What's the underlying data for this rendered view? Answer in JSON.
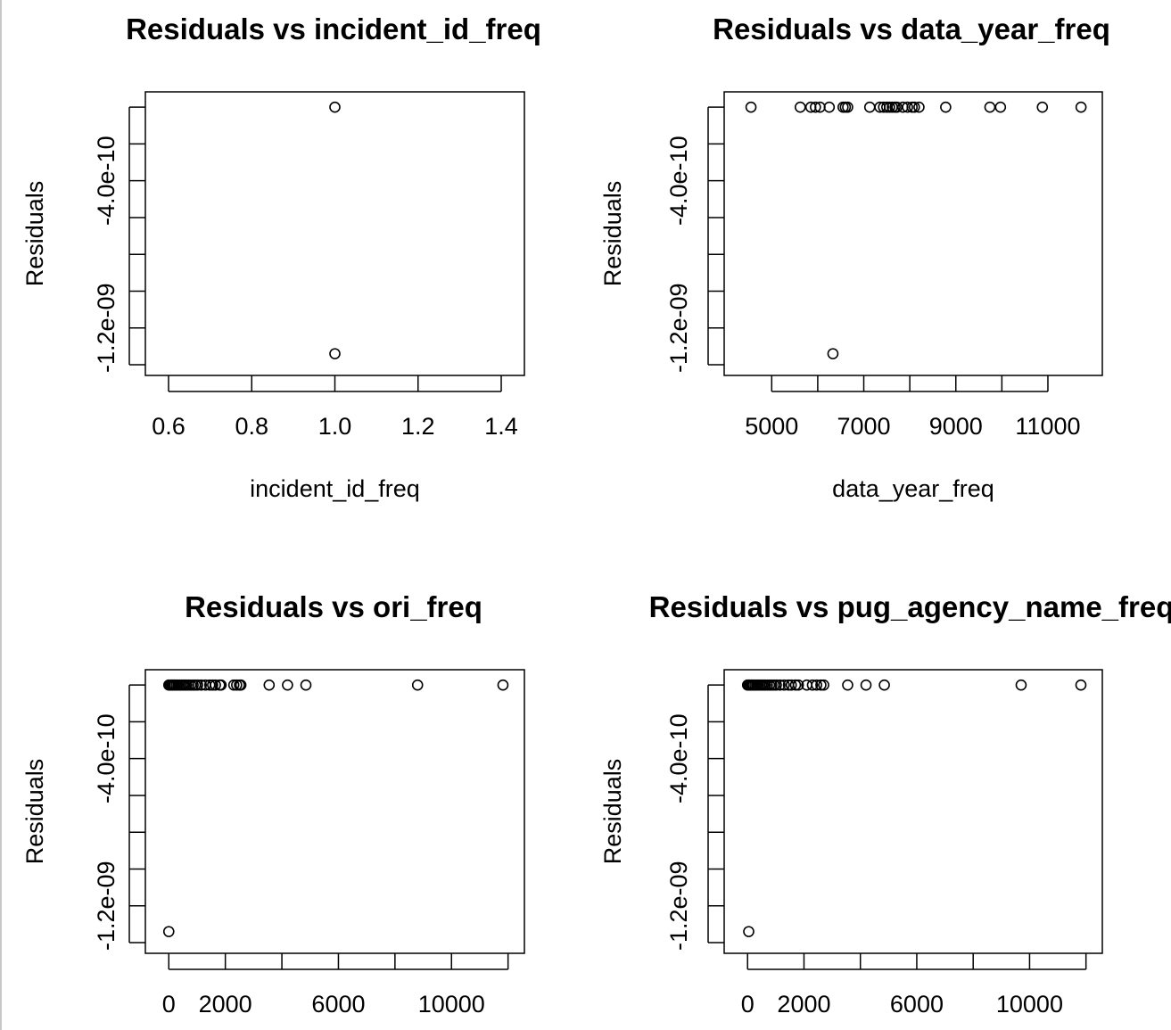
{
  "chart_data": [
    {
      "type": "scatter",
      "title": "Residuals vs incident_id_freq",
      "xlabel": "incident_id_freq",
      "ylabel": "Residuals",
      "xlim": [
        0.57,
        1.43
      ],
      "ylim": [
        -1.4e-09,
        2.5e-11
      ],
      "x_ticks": [
        0.6,
        0.8,
        1.0,
        1.2,
        1.4
      ],
      "x_tick_labels": [
        "0.6",
        "0.8",
        "1.0",
        "1.2",
        "1.4"
      ],
      "y_ticks": [
        0,
        -2e-10,
        -4e-10,
        -6e-10,
        -8e-10,
        -1e-09,
        -1.2e-09,
        -1.4e-09
      ],
      "y_tick_labels": [
        "",
        "-4.0e-10",
        "",
        "-1.2e-09"
      ],
      "y_tick_label_values": [
        -2e-10,
        -4e-10,
        -1e-09,
        -1.2e-09
      ],
      "x": [
        1.0,
        1.0
      ],
      "y": [
        0,
        -1.34e-09
      ]
    },
    {
      "type": "scatter",
      "title": "Residuals vs data_year_freq",
      "xlabel": "data_year_freq",
      "ylabel": "Residuals",
      "xlim": [
        4200,
        11950
      ],
      "ylim": [
        -1.4e-09,
        2.5e-11
      ],
      "x_ticks": [
        5000,
        6000,
        7000,
        8000,
        9000,
        10000,
        11000
      ],
      "x_tick_labels": [
        "5000",
        "",
        "7000",
        "",
        "9000",
        "",
        "11000"
      ],
      "y_ticks": [
        0,
        -2e-10,
        -4e-10,
        -6e-10,
        -8e-10,
        -1e-09,
        -1.2e-09,
        -1.4e-09
      ],
      "y_tick_labels": [
        "",
        "-4.0e-10",
        "",
        "-1.2e-09"
      ],
      "y_tick_label_values": [
        -2e-10,
        -4e-10,
        -1e-09,
        -1.2e-09
      ],
      "x": [
        4550,
        5620,
        5850,
        5950,
        6050,
        6250,
        6550,
        6600,
        6650,
        7130,
        7350,
        7430,
        7500,
        7560,
        7620,
        7680,
        7720,
        7850,
        7950,
        8050,
        8100,
        8200,
        8780,
        9740,
        9970,
        10880,
        11720,
        6330
      ],
      "y": [
        0,
        0,
        0,
        0,
        0,
        0,
        0,
        0,
        0,
        0,
        0,
        0,
        0,
        0,
        0,
        0,
        0,
        0,
        0,
        0,
        0,
        0,
        0,
        0,
        0,
        0,
        0,
        -1.34e-09
      ]
    },
    {
      "type": "scatter",
      "title": "Residuals vs ori_freq",
      "xlabel": "",
      "ylabel": "Residuals",
      "xlim": [
        -450,
        12200
      ],
      "ylim": [
        -1.4e-09,
        2.5e-11
      ],
      "x_ticks": [
        0,
        2000,
        4000,
        6000,
        8000,
        10000,
        12000
      ],
      "x_tick_labels": [
        "0",
        "2000",
        "",
        "6000",
        "",
        "10000",
        ""
      ],
      "y_ticks": [
        0,
        -2e-10,
        -4e-10,
        -6e-10,
        -8e-10,
        -1e-09,
        -1.2e-09,
        -1.4e-09
      ],
      "y_tick_labels": [
        "",
        "-4.0e-10",
        "",
        "-1.2e-09"
      ],
      "y_tick_label_values": [
        -2e-10,
        -4e-10,
        -1e-09,
        -1.2e-09
      ],
      "x": [
        0,
        40,
        80,
        120,
        160,
        200,
        260,
        320,
        380,
        440,
        500,
        560,
        620,
        700,
        780,
        860,
        940,
        1020,
        1150,
        1300,
        1450,
        1550,
        1650,
        1800,
        1850,
        2300,
        2400,
        2500,
        2550,
        3550,
        4200,
        4850,
        8800,
        11820,
        0
      ],
      "y": [
        0,
        0,
        0,
        0,
        0,
        0,
        0,
        0,
        0,
        0,
        0,
        0,
        0,
        0,
        0,
        0,
        0,
        0,
        0,
        0,
        0,
        0,
        0,
        0,
        0,
        0,
        0,
        0,
        0,
        0,
        0,
        0,
        0,
        0,
        -1.34e-09
      ]
    },
    {
      "type": "scatter",
      "title": "Residuals vs pug_agency_name_freq",
      "xlabel": "",
      "ylabel": "Residuals",
      "xlim": [
        -450,
        12200
      ],
      "ylim": [
        -1.4e-09,
        2.5e-11
      ],
      "x_ticks": [
        0,
        2000,
        4000,
        6000,
        8000,
        10000,
        12000
      ],
      "x_tick_labels": [
        "0",
        "2000",
        "",
        "6000",
        "",
        "10000",
        ""
      ],
      "y_ticks": [
        0,
        -2e-10,
        -4e-10,
        -6e-10,
        -8e-10,
        -1e-09,
        -1.2e-09,
        -1.4e-09
      ],
      "y_tick_labels": [
        "",
        "-4.0e-10",
        "",
        "-1.2e-09"
      ],
      "y_tick_label_values": [
        -2e-10,
        -4e-10,
        -1e-09,
        -1.2e-09
      ],
      "x": [
        0,
        40,
        80,
        120,
        160,
        200,
        260,
        320,
        380,
        440,
        500,
        560,
        620,
        700,
        780,
        860,
        940,
        1020,
        1150,
        1300,
        1450,
        1550,
        1700,
        1800,
        2100,
        2300,
        2450,
        2600,
        2700,
        3550,
        4200,
        4850,
        9700,
        11820,
        40
      ],
      "y": [
        0,
        0,
        0,
        0,
        0,
        0,
        0,
        0,
        0,
        0,
        0,
        0,
        0,
        0,
        0,
        0,
        0,
        0,
        0,
        0,
        0,
        0,
        0,
        0,
        0,
        0,
        0,
        0,
        0,
        0,
        0,
        0,
        0,
        0,
        -1.34e-09
      ]
    }
  ]
}
